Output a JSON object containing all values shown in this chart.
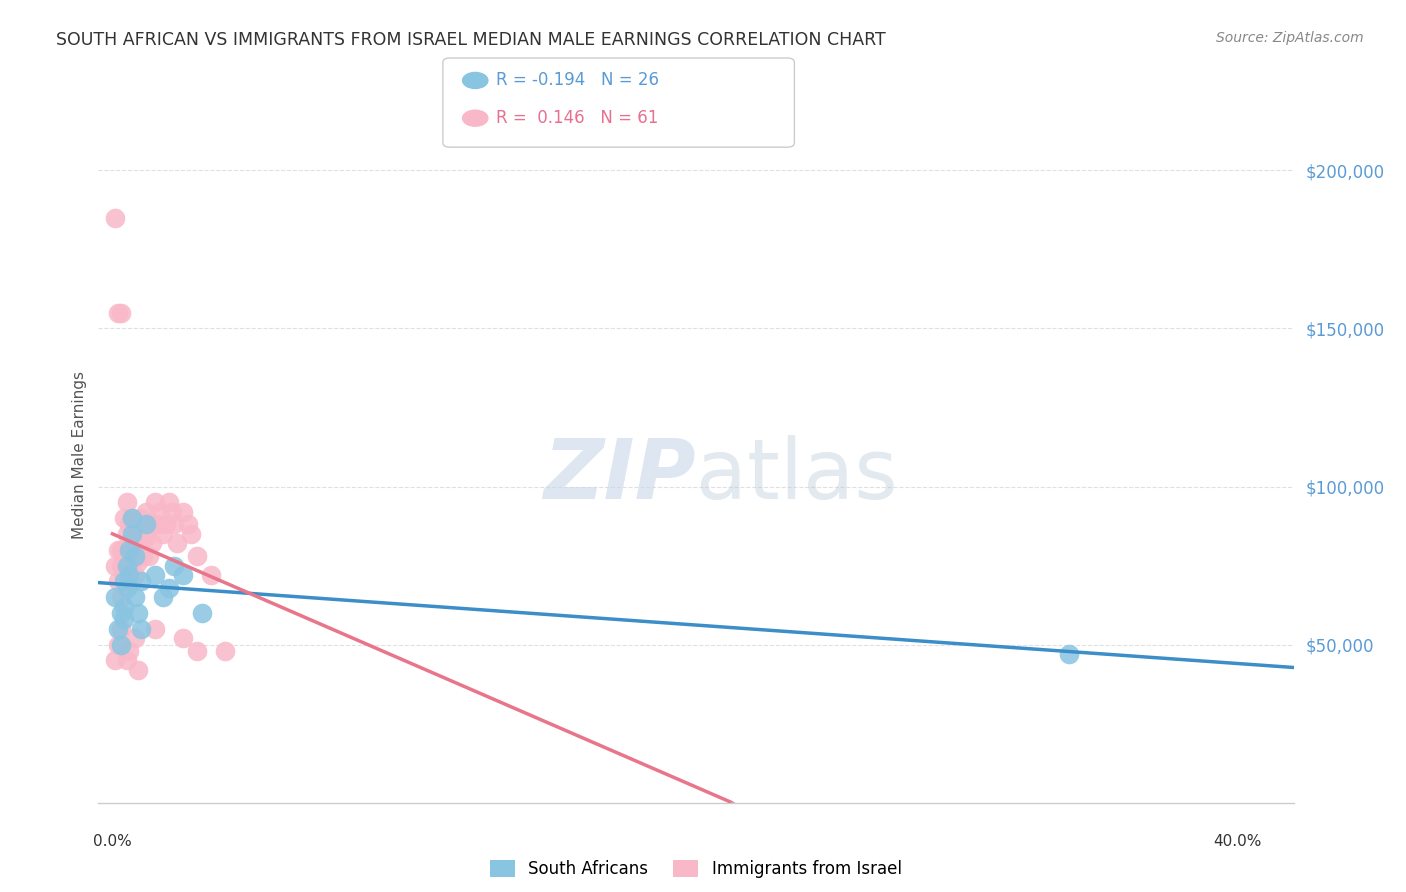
{
  "title": "SOUTH AFRICAN VS IMMIGRANTS FROM ISRAEL MEDIAN MALE EARNINGS CORRELATION CHART",
  "source": "Source: ZipAtlas.com",
  "ylabel": "Median Male Earnings",
  "ytick_labels": [
    "$50,000",
    "$100,000",
    "$150,000",
    "$200,000"
  ],
  "ytick_values": [
    50000,
    100000,
    150000,
    200000
  ],
  "ylim": [
    0,
    220000
  ],
  "xlim": [
    -0.005,
    0.42
  ],
  "legend_blue_r": "-0.194",
  "legend_blue_n": "26",
  "legend_pink_r": "0.146",
  "legend_pink_n": "61",
  "blue_dot_color": "#89c4e1",
  "pink_dot_color": "#f9b8c8",
  "trend_blue_color": "#3b8ec8",
  "trend_pink_color": "#e8758a",
  "trend_pink_dashed_color": "#d4a0aa",
  "grid_color": "#e0e0e0",
  "title_color": "#333333",
  "axis_label_color": "#5b9bd5",
  "watermark_color": "#c8d8e8",
  "south_africans_x": [
    0.001,
    0.002,
    0.003,
    0.003,
    0.004,
    0.004,
    0.004,
    0.005,
    0.005,
    0.006,
    0.006,
    0.007,
    0.007,
    0.008,
    0.008,
    0.009,
    0.01,
    0.01,
    0.012,
    0.015,
    0.018,
    0.02,
    0.022,
    0.025,
    0.032,
    0.34
  ],
  "south_africans_y": [
    65000,
    55000,
    60000,
    50000,
    70000,
    62000,
    58000,
    75000,
    68000,
    80000,
    72000,
    85000,
    90000,
    78000,
    65000,
    60000,
    55000,
    70000,
    88000,
    72000,
    65000,
    68000,
    75000,
    72000,
    60000,
    47000
  ],
  "immigrants_x": [
    0.001,
    0.001,
    0.002,
    0.002,
    0.002,
    0.003,
    0.003,
    0.003,
    0.003,
    0.004,
    0.004,
    0.004,
    0.005,
    0.005,
    0.005,
    0.005,
    0.006,
    0.006,
    0.006,
    0.007,
    0.007,
    0.007,
    0.008,
    0.008,
    0.008,
    0.009,
    0.009,
    0.01,
    0.01,
    0.011,
    0.011,
    0.012,
    0.012,
    0.013,
    0.013,
    0.014,
    0.015,
    0.016,
    0.017,
    0.018,
    0.019,
    0.02,
    0.021,
    0.022,
    0.023,
    0.025,
    0.027,
    0.028,
    0.03,
    0.035,
    0.04,
    0.001,
    0.002,
    0.003,
    0.005,
    0.006,
    0.008,
    0.009,
    0.015,
    0.025,
    0.03
  ],
  "immigrants_y": [
    185000,
    75000,
    80000,
    155000,
    70000,
    155000,
    80000,
    75000,
    65000,
    90000,
    80000,
    72000,
    95000,
    85000,
    80000,
    70000,
    88000,
    78000,
    72000,
    90000,
    82000,
    76000,
    88000,
    80000,
    72000,
    85000,
    76000,
    90000,
    82000,
    85000,
    78000,
    92000,
    84000,
    88000,
    78000,
    82000,
    95000,
    88000,
    92000,
    85000,
    88000,
    95000,
    92000,
    88000,
    82000,
    92000,
    88000,
    85000,
    78000,
    72000,
    48000,
    45000,
    50000,
    55000,
    45000,
    48000,
    52000,
    42000,
    55000,
    52000,
    48000
  ]
}
